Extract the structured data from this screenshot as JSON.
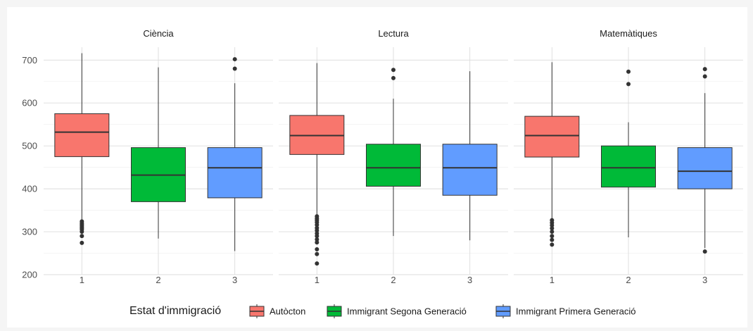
{
  "chart_data": {
    "type": "boxplot",
    "facets": [
      "Ciència",
      "Lectura",
      "Matemàtiques"
    ],
    "categories": [
      "1",
      "2",
      "3"
    ],
    "ylim": [
      200,
      730
    ],
    "yticks": [
      200,
      300,
      400,
      500,
      600,
      700
    ],
    "grid": true,
    "legend": {
      "title": "Estat d'immigració",
      "position": "bottom",
      "entries": [
        {
          "label": "Autòcton",
          "color": "#F8766D"
        },
        {
          "label": "Immigrant Segona Generació",
          "color": "#00BA38"
        },
        {
          "label": "Immigrant Primera Generació",
          "color": "#619CFF"
        }
      ]
    },
    "series": [
      {
        "facet": "Ciència",
        "boxes": [
          {
            "category": "1",
            "min": 326,
            "q1": 475,
            "median": 532,
            "q3": 575,
            "max": 716,
            "outliers": [
              324,
              320,
              317,
              314,
              311,
              308,
              305,
              300,
              290,
              274
            ]
          },
          {
            "category": "2",
            "min": 284,
            "q1": 370,
            "median": 432,
            "q3": 496,
            "max": 683,
            "outliers": []
          },
          {
            "category": "3",
            "min": 255,
            "q1": 379,
            "median": 449,
            "q3": 496,
            "max": 646,
            "outliers": [
              680,
              702
            ]
          }
        ]
      },
      {
        "facet": "Lectura",
        "boxes": [
          {
            "category": "1",
            "min": 340,
            "q1": 480,
            "median": 524,
            "q3": 571,
            "max": 693,
            "outliers": [
              336,
              331,
              327,
              322,
              316,
              309,
              303,
              296,
              290,
              282,
              275,
              259,
              248,
              226
            ]
          },
          {
            "category": "2",
            "min": 290,
            "q1": 406,
            "median": 449,
            "q3": 504,
            "max": 610,
            "outliers": [
              658,
              677
            ]
          },
          {
            "category": "3",
            "min": 280,
            "q1": 385,
            "median": 449,
            "q3": 504,
            "max": 674,
            "outliers": []
          }
        ]
      },
      {
        "facet": "Matemàtiques",
        "boxes": [
          {
            "category": "1",
            "min": 330,
            "q1": 474,
            "median": 524,
            "q3": 569,
            "max": 695,
            "outliers": [
              327,
              321,
              315,
              308,
              300,
              290,
              281,
              270
            ]
          },
          {
            "category": "2",
            "min": 287,
            "q1": 404,
            "median": 449,
            "q3": 500,
            "max": 555,
            "outliers": [
              644,
              673
            ]
          },
          {
            "category": "3",
            "min": 262,
            "q1": 400,
            "median": 441,
            "q3": 496,
            "max": 623,
            "outliers": [
              254,
              662,
              679
            ]
          }
        ]
      }
    ]
  }
}
